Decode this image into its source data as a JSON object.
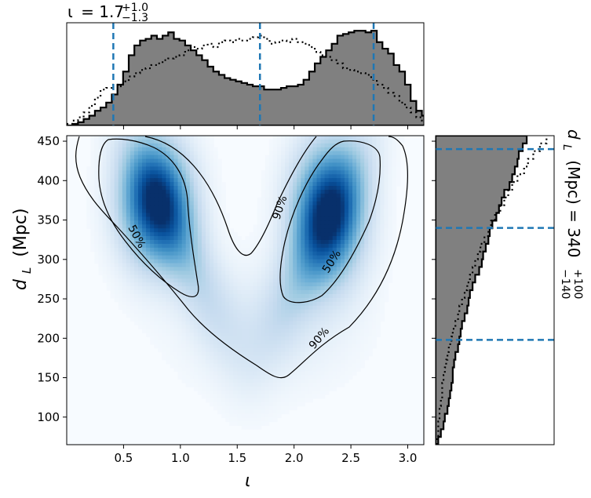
{
  "chart_data": {
    "type": "heatmap",
    "subtype": "corner-plot (2D density with marginal histograms)",
    "top_title": {
      "param": "ι",
      "value": "1.7",
      "plus": "+1.0",
      "minus": "−1.3"
    },
    "right_title": {
      "param": "d",
      "sub": "L",
      "units": "(Mpc) = 340",
      "plus": "+100",
      "minus": "−140"
    },
    "xlabel": "ι",
    "ylabel": "d",
    "ylabel_sub": "L",
    "ylabel_units": "(Mpc)",
    "xlim": [
      0.0,
      3.14159
    ],
    "ylim": [
      65,
      457
    ],
    "x_ticks": [
      0.5,
      1.0,
      1.5,
      2.0,
      2.5,
      3.0
    ],
    "x_tick_labels": [
      "0.5",
      "1.0",
      "1.5",
      "2.0",
      "2.5",
      "3.0"
    ],
    "y_ticks": [
      100,
      150,
      200,
      250,
      300,
      350,
      400,
      450
    ],
    "y_tick_labels": [
      "100",
      "150",
      "200",
      "250",
      "300",
      "350",
      "400",
      "450"
    ],
    "colormap": "Blues",
    "density_peaks": [
      {
        "iota": 0.8,
        "dl": 370,
        "weight": 1.0
      },
      {
        "iota": 2.35,
        "dl": 370,
        "weight": 1.0
      }
    ],
    "contour_levels": [
      "50%",
      "90%"
    ],
    "contour_label_50_left": "50%",
    "contour_label_50_right": "50%",
    "contour_label_90_upper": "90%",
    "contour_label_90_lower": "90%",
    "iota_quantiles": [
      0.41,
      1.7,
      2.7
    ],
    "dl_quantiles": [
      198,
      340,
      440
    ],
    "iota_hist": {
      "bin_edges_start": 0.0,
      "bin_width": 0.0496,
      "posterior": [
        0,
        1,
        2,
        4,
        6,
        9,
        11,
        14,
        19,
        25,
        33,
        43,
        49,
        52,
        53,
        55,
        53,
        55,
        57,
        53,
        52,
        49,
        46,
        43,
        40,
        36,
        33,
        31,
        29,
        28,
        27,
        26,
        25,
        24,
        24,
        22,
        22,
        22,
        23,
        24,
        24,
        25,
        28,
        33,
        38,
        42,
        46,
        50,
        55,
        56,
        57,
        58,
        58,
        57,
        58,
        51,
        47,
        44,
        37,
        33,
        25,
        15,
        9,
        6
      ],
      "prior": [
        1,
        3,
        5,
        8,
        12,
        17,
        22,
        23,
        25,
        24,
        27,
        30,
        32,
        34,
        35,
        37,
        38,
        40,
        41,
        42,
        43,
        46,
        48,
        47,
        49,
        50,
        48,
        51,
        52,
        51,
        53,
        52,
        53,
        54,
        55,
        53,
        50,
        51,
        52,
        51,
        53,
        51,
        50,
        48,
        45,
        43,
        42,
        40,
        38,
        35,
        34,
        33,
        32,
        31,
        28,
        25,
        23,
        20,
        18,
        14,
        11,
        8,
        5,
        3
      ]
    },
    "dl_hist": {
      "bin_start": 65,
      "bin_width": 9.8,
      "posterior": [
        2,
        4,
        6,
        7,
        9,
        10,
        11,
        12,
        13,
        13,
        14,
        15,
        17,
        18,
        19,
        20,
        22,
        24,
        25,
        26,
        28,
        30,
        33,
        35,
        36,
        38,
        40,
        41,
        43,
        46,
        48,
        50,
        52,
        56,
        58,
        60,
        62,
        63,
        66,
        69
      ],
      "prior": [
        1,
        2,
        2,
        3,
        3,
        4,
        5,
        5,
        6,
        7,
        8,
        9,
        10,
        12,
        13,
        15,
        17,
        18,
        20,
        22,
        24,
        26,
        28,
        30,
        32,
        34,
        37,
        40,
        42,
        45,
        49,
        52,
        55,
        58,
        62,
        67,
        70,
        74,
        79,
        84
      ]
    }
  }
}
